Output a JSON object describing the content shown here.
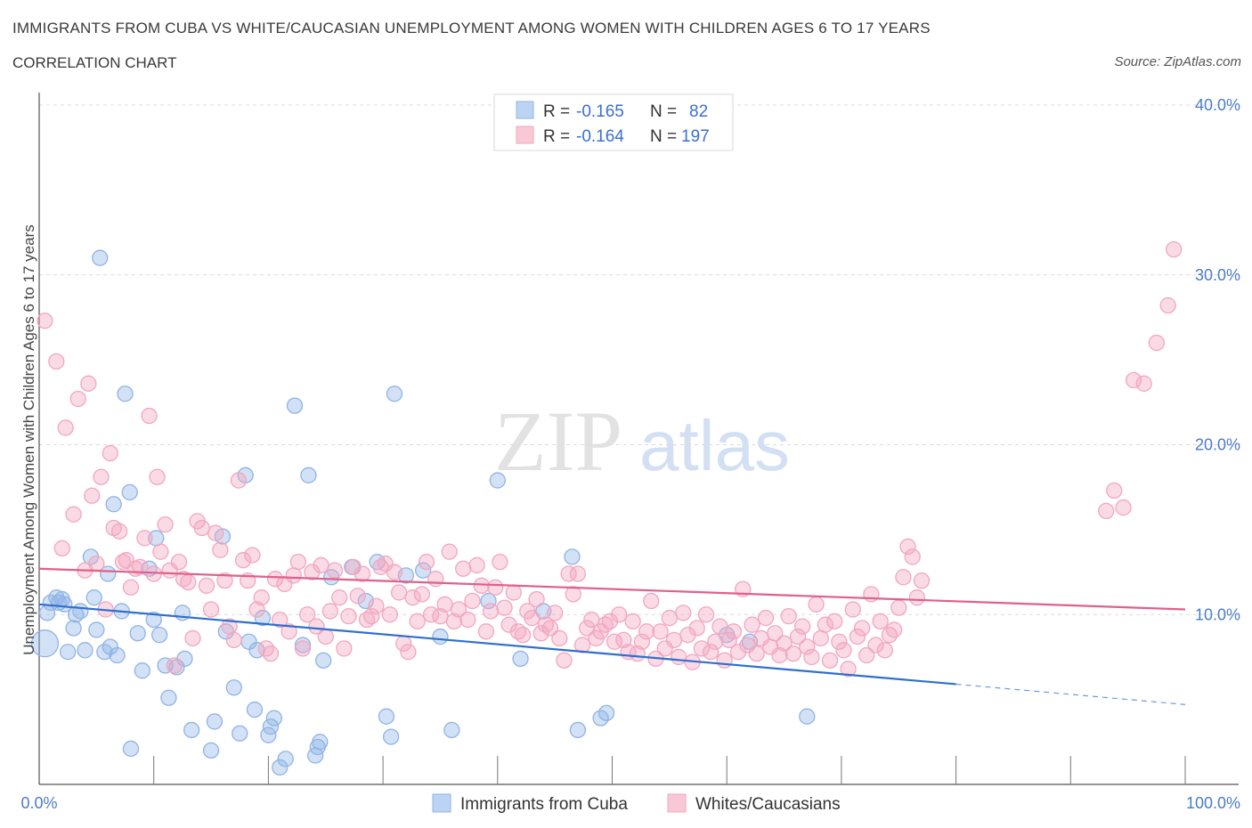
{
  "header": {
    "title": "IMMIGRANTS FROM CUBA VS WHITE/CAUCASIAN UNEMPLOYMENT AMONG WOMEN WITH CHILDREN AGES 6 TO 17 YEARS",
    "subtitle": "CORRELATION CHART",
    "source": "Source: ZipAtlas.com"
  },
  "watermark": {
    "zip": "ZIP",
    "atlas": "atlas"
  },
  "legend": {
    "r_label": "R =",
    "n_label": "N =",
    "series": [
      {
        "r": "-0.165",
        "n": "82"
      },
      {
        "r": "-0.164",
        "n": "197"
      }
    ]
  },
  "chart_data": {
    "type": "scatter",
    "title": "IMMIGRANTS FROM CUBA VS WHITE/CAUCASIAN UNEMPLOYMENT AMONG WOMEN WITH CHILDREN AGES 6 TO 17 YEARS",
    "xlabel": "",
    "ylabel": "Unemployment Among Women with Children Ages 6 to 17 years",
    "xlim": [
      0,
      100
    ],
    "ylim": [
      0,
      40
    ],
    "x_tick_labels": [
      "0.0%",
      "100.0%"
    ],
    "y_ticks": [
      10,
      20,
      30,
      40
    ],
    "y_tick_labels": [
      "10.0%",
      "20.0%",
      "30.0%",
      "40.0%"
    ],
    "grid": true,
    "legend_position": "top-center",
    "series": [
      {
        "name": "Immigrants from Cuba",
        "color": "#8fb4e6",
        "line_color": "#2f6fce",
        "trend": {
          "x": [
            0,
            80
          ],
          "y": [
            10.6,
            5.9
          ]
        },
        "trend_dashed": {
          "x": [
            80,
            100
          ],
          "y": [
            5.9,
            4.7
          ]
        },
        "points": [
          [
            0.5,
            8.3
          ],
          [
            0.7,
            10.1
          ],
          [
            1,
            10.7
          ],
          [
            1.5,
            11.0
          ],
          [
            1.7,
            10.7
          ],
          [
            2,
            10.9
          ],
          [
            2.2,
            10.6
          ],
          [
            2.5,
            7.8
          ],
          [
            3,
            9.2
          ],
          [
            3.2,
            10.0
          ],
          [
            3.6,
            10.2
          ],
          [
            4,
            7.9
          ],
          [
            4.5,
            13.4
          ],
          [
            4.8,
            11.0
          ],
          [
            5,
            9.1
          ],
          [
            5.3,
            31.0
          ],
          [
            5.7,
            7.8
          ],
          [
            6,
            12.4
          ],
          [
            6.2,
            8.1
          ],
          [
            6.5,
            16.5
          ],
          [
            6.8,
            7.6
          ],
          [
            7.2,
            10.2
          ],
          [
            7.5,
            23.0
          ],
          [
            7.9,
            17.2
          ],
          [
            8,
            2.1
          ],
          [
            8.6,
            8.9
          ],
          [
            9,
            6.7
          ],
          [
            9.6,
            12.7
          ],
          [
            10,
            9.7
          ],
          [
            10.2,
            14.5
          ],
          [
            10.5,
            8.8
          ],
          [
            11,
            7.0
          ],
          [
            11.3,
            5.1
          ],
          [
            12,
            6.9
          ],
          [
            12.5,
            10.1
          ],
          [
            12.7,
            7.4
          ],
          [
            13.3,
            3.2
          ],
          [
            15,
            2.0
          ],
          [
            15.3,
            3.7
          ],
          [
            16,
            14.6
          ],
          [
            16.3,
            9.0
          ],
          [
            17,
            5.7
          ],
          [
            17.5,
            3.0
          ],
          [
            18,
            18.2
          ],
          [
            18.3,
            8.4
          ],
          [
            18.8,
            4.4
          ],
          [
            19,
            7.9
          ],
          [
            19.5,
            9.8
          ],
          [
            20,
            2.9
          ],
          [
            20.2,
            3.4
          ],
          [
            20.5,
            3.9
          ],
          [
            21,
            1.0
          ],
          [
            21.5,
            1.5
          ],
          [
            22.3,
            22.3
          ],
          [
            23,
            8.2
          ],
          [
            23.5,
            18.2
          ],
          [
            24.1,
            1.7
          ],
          [
            24.3,
            2.2
          ],
          [
            24.5,
            2.5
          ],
          [
            24.8,
            7.3
          ],
          [
            25.5,
            12.2
          ],
          [
            27.3,
            12.8
          ],
          [
            28.5,
            10.8
          ],
          [
            29.5,
            13.1
          ],
          [
            30.3,
            4.0
          ],
          [
            30.7,
            2.8
          ],
          [
            31,
            23.0
          ],
          [
            32,
            12.3
          ],
          [
            33.5,
            12.6
          ],
          [
            35,
            8.7
          ],
          [
            36,
            3.2
          ],
          [
            39.2,
            10.8
          ],
          [
            40,
            17.9
          ],
          [
            42,
            7.4
          ],
          [
            44,
            10.2
          ],
          [
            46.5,
            13.4
          ],
          [
            47,
            3.2
          ],
          [
            49,
            3.9
          ],
          [
            49.5,
            4.2
          ],
          [
            60,
            8.8
          ],
          [
            62,
            8.4
          ],
          [
            67,
            4.0
          ]
        ]
      },
      {
        "name": "Whites/Caucasians",
        "color": "#f3a6bf",
        "line_color": "#e0608a",
        "trend": {
          "x": [
            0,
            100
          ],
          "y": [
            12.7,
            10.3
          ]
        },
        "points": [
          [
            0.5,
            27.3
          ],
          [
            1.5,
            24.9
          ],
          [
            2,
            13.9
          ],
          [
            2.3,
            21.0
          ],
          [
            3,
            15.9
          ],
          [
            3.4,
            22.7
          ],
          [
            4,
            12.6
          ],
          [
            4.3,
            23.6
          ],
          [
            4.6,
            17.0
          ],
          [
            5,
            13.0
          ],
          [
            5.4,
            18.1
          ],
          [
            5.8,
            10.3
          ],
          [
            6.2,
            19.5
          ],
          [
            6.5,
            15.1
          ],
          [
            7,
            14.9
          ],
          [
            7.3,
            13.1
          ],
          [
            7.6,
            13.2
          ],
          [
            8,
            11.6
          ],
          [
            8.4,
            12.7
          ],
          [
            8.8,
            12.8
          ],
          [
            9.2,
            14.5
          ],
          [
            9.6,
            21.7
          ],
          [
            10,
            12.4
          ],
          [
            10.3,
            18.1
          ],
          [
            10.6,
            13.7
          ],
          [
            11,
            15.3
          ],
          [
            11.4,
            12.6
          ],
          [
            11.8,
            7.0
          ],
          [
            12.2,
            13.1
          ],
          [
            12.6,
            12.1
          ],
          [
            13,
            11.9
          ],
          [
            13.4,
            8.6
          ],
          [
            13.8,
            15.5
          ],
          [
            14.2,
            15.1
          ],
          [
            14.6,
            11.7
          ],
          [
            15,
            10.3
          ],
          [
            15.4,
            14.8
          ],
          [
            15.8,
            13.8
          ],
          [
            16.2,
            12.0
          ],
          [
            16.6,
            9.3
          ],
          [
            17,
            8.5
          ],
          [
            17.4,
            17.9
          ],
          [
            17.8,
            13.2
          ],
          [
            18.2,
            12.0
          ],
          [
            18.6,
            13.5
          ],
          [
            19,
            10.3
          ],
          [
            19.4,
            11.0
          ],
          [
            19.8,
            8.0
          ],
          [
            20.2,
            7.7
          ],
          [
            20.6,
            12.1
          ],
          [
            21,
            9.7
          ],
          [
            21.4,
            11.8
          ],
          [
            21.8,
            9.0
          ],
          [
            22.2,
            12.3
          ],
          [
            22.6,
            13.1
          ],
          [
            23,
            8.0
          ],
          [
            23.4,
            10.0
          ],
          [
            23.8,
            12.5
          ],
          [
            24.2,
            9.3
          ],
          [
            24.6,
            12.9
          ],
          [
            25,
            8.7
          ],
          [
            25.4,
            10.2
          ],
          [
            25.8,
            12.6
          ],
          [
            26.2,
            11.0
          ],
          [
            26.6,
            8.0
          ],
          [
            27,
            9.9
          ],
          [
            27.4,
            12.8
          ],
          [
            27.8,
            11.1
          ],
          [
            28.2,
            12.4
          ],
          [
            28.6,
            9.7
          ],
          [
            29,
            9.9
          ],
          [
            29.4,
            10.5
          ],
          [
            29.8,
            12.8
          ],
          [
            30.2,
            13.0
          ],
          [
            30.6,
            10.0
          ],
          [
            31,
            12.5
          ],
          [
            31.4,
            11.3
          ],
          [
            31.8,
            8.3
          ],
          [
            32.2,
            7.8
          ],
          [
            32.6,
            11.0
          ],
          [
            33,
            9.6
          ],
          [
            33.4,
            11.2
          ],
          [
            33.8,
            13.1
          ],
          [
            34.2,
            10.0
          ],
          [
            34.6,
            12.1
          ],
          [
            35,
            9.9
          ],
          [
            35.4,
            10.6
          ],
          [
            35.8,
            13.7
          ],
          [
            36.2,
            9.6
          ],
          [
            36.6,
            10.3
          ],
          [
            37,
            12.7
          ],
          [
            37.4,
            9.7
          ],
          [
            37.8,
            10.8
          ],
          [
            38.2,
            12.9
          ],
          [
            38.6,
            11.7
          ],
          [
            39,
            9.0
          ],
          [
            39.4,
            10.2
          ],
          [
            39.8,
            11.6
          ],
          [
            40.2,
            13.1
          ],
          [
            40.6,
            10.4
          ],
          [
            41,
            9.4
          ],
          [
            41.4,
            11.3
          ],
          [
            41.8,
            9.0
          ],
          [
            42.2,
            8.8
          ],
          [
            42.6,
            10.2
          ],
          [
            43,
            9.8
          ],
          [
            43.4,
            10.9
          ],
          [
            43.8,
            8.9
          ],
          [
            44.2,
            9.4
          ],
          [
            44.6,
            9.2
          ],
          [
            45,
            10.1
          ],
          [
            45.4,
            8.6
          ],
          [
            45.8,
            7.3
          ],
          [
            46.2,
            12.4
          ],
          [
            46.6,
            11.2
          ],
          [
            47,
            12.4
          ],
          [
            47.4,
            8.2
          ],
          [
            47.8,
            9.2
          ],
          [
            48.2,
            9.7
          ],
          [
            48.6,
            8.6
          ],
          [
            49,
            9.0
          ],
          [
            49.4,
            9.4
          ],
          [
            49.8,
            9.6
          ],
          [
            50.2,
            8.4
          ],
          [
            50.6,
            10.0
          ],
          [
            51,
            8.5
          ],
          [
            51.4,
            7.8
          ],
          [
            51.8,
            9.6
          ],
          [
            52.2,
            7.7
          ],
          [
            52.6,
            8.4
          ],
          [
            53,
            9.0
          ],
          [
            53.4,
            10.8
          ],
          [
            53.8,
            7.4
          ],
          [
            54.2,
            9.0
          ],
          [
            54.6,
            8.0
          ],
          [
            55,
            9.8
          ],
          [
            55.4,
            8.5
          ],
          [
            55.8,
            7.5
          ],
          [
            56.2,
            10.1
          ],
          [
            56.6,
            8.8
          ],
          [
            57,
            7.2
          ],
          [
            57.4,
            9.2
          ],
          [
            57.8,
            8.0
          ],
          [
            58.2,
            10.0
          ],
          [
            58.6,
            7.8
          ],
          [
            59,
            8.4
          ],
          [
            59.4,
            9.3
          ],
          [
            59.8,
            7.3
          ],
          [
            60.2,
            8.5
          ],
          [
            60.6,
            9.0
          ],
          [
            61,
            7.8
          ],
          [
            61.4,
            11.5
          ],
          [
            61.8,
            8.2
          ],
          [
            62.2,
            9.4
          ],
          [
            62.6,
            7.7
          ],
          [
            63,
            8.6
          ],
          [
            63.4,
            9.8
          ],
          [
            63.8,
            8.1
          ],
          [
            64.2,
            8.9
          ],
          [
            64.6,
            7.6
          ],
          [
            65,
            8.3
          ],
          [
            65.4,
            9.9
          ],
          [
            65.8,
            7.7
          ],
          [
            66.2,
            8.7
          ],
          [
            66.6,
            9.3
          ],
          [
            67,
            8.1
          ],
          [
            67.4,
            7.5
          ],
          [
            67.8,
            10.6
          ],
          [
            68.2,
            8.6
          ],
          [
            68.6,
            9.4
          ],
          [
            69,
            7.3
          ],
          [
            69.4,
            9.6
          ],
          [
            69.8,
            8.4
          ],
          [
            70.2,
            7.9
          ],
          [
            70.6,
            6.8
          ],
          [
            71,
            10.3
          ],
          [
            71.4,
            8.7
          ],
          [
            71.8,
            9.2
          ],
          [
            72.2,
            7.6
          ],
          [
            72.6,
            11.2
          ],
          [
            73,
            8.2
          ],
          [
            73.4,
            9.6
          ],
          [
            73.8,
            7.9
          ],
          [
            74.2,
            8.8
          ],
          [
            74.6,
            9.1
          ],
          [
            75,
            10.4
          ],
          [
            75.4,
            12.2
          ],
          [
            75.8,
            14.0
          ],
          [
            76.2,
            13.4
          ],
          [
            76.6,
            11.0
          ],
          [
            77,
            12.0
          ],
          [
            93.1,
            16.1
          ],
          [
            93.8,
            17.3
          ],
          [
            94.6,
            16.3
          ],
          [
            95.5,
            23.8
          ],
          [
            96.4,
            23.6
          ],
          [
            97.5,
            26.0
          ],
          [
            98.5,
            28.2
          ],
          [
            99,
            31.5
          ]
        ]
      }
    ]
  },
  "bottom_legend": {
    "items": [
      {
        "label": "Immigrants from Cuba"
      },
      {
        "label": "Whites/Caucasians"
      }
    ]
  }
}
